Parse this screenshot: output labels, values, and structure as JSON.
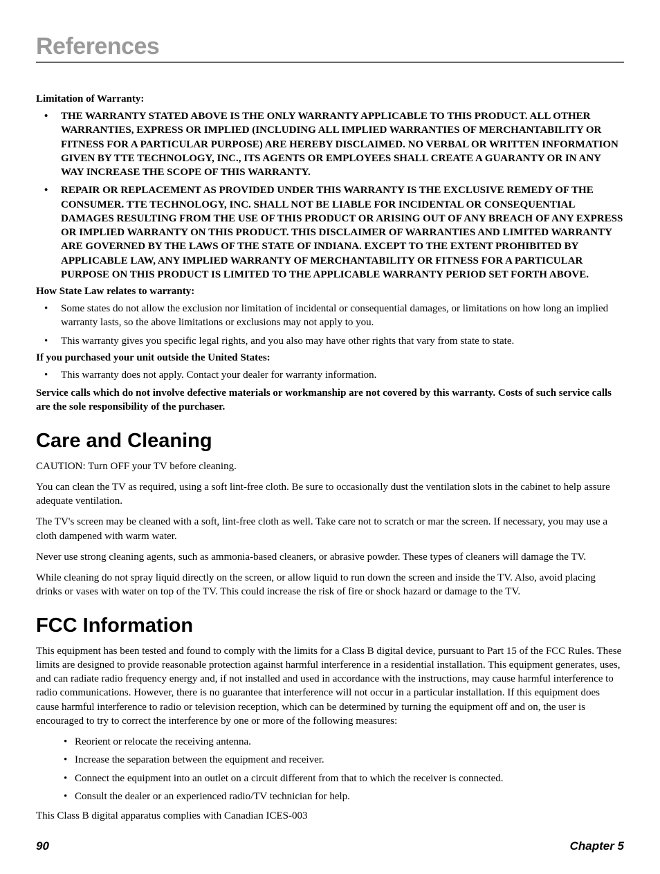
{
  "page_title": "References",
  "warranty": {
    "limitation_heading": "Limitation of Warranty:",
    "limitation_items": [
      "THE WARRANTY STATED ABOVE IS THE ONLY WARRANTY APPLICABLE TO THIS PRODUCT.  ALL OTHER WARRANTIES, EXPRESS OR IMPLIED (INCLUDING ALL IMPLIED WARRANTIES OF MERCHANTABILITY OR FITNESS FOR A PARTICULAR PURPOSE) ARE HEREBY DISCLAIMED.  NO VERBAL OR WRITTEN INFORMATION GIVEN BY TTE TECHNOLOGY, INC., ITS AGENTS OR EMPLOYEES SHALL CREATE A GUARANTY OR IN ANY WAY INCREASE THE SCOPE OF THIS WARRANTY.",
      "REPAIR OR REPLACEMENT AS PROVIDED UNDER THIS WARRANTY IS THE EXCLUSIVE REMEDY OF THE CONSUMER.  TTE TECHNOLOGY, INC. SHALL NOT BE LIABLE FOR INCIDENTAL OR CONSEQUENTIAL DAMAGES RESULTING FROM THE USE OF THIS PRODUCT OR ARISING OUT OF ANY BREACH OF ANY EXPRESS OR IMPLIED WARRANTY ON THIS PRODUCT.  THIS DISCLAIMER OF WARRANTIES AND LIMITED WARRANTY ARE GOVERNED BY THE LAWS OF THE STATE OF INDIANA.  EXCEPT TO THE EXTENT PROHIBITED BY APPLICABLE LAW, ANY IMPLIED WARRANTY OF MERCHANTABILITY OR FITNESS FOR A PARTICULAR PURPOSE ON THIS PRODUCT IS LIMITED TO THE APPLICABLE WARRANTY PERIOD SET FORTH ABOVE."
    ],
    "state_law_heading": "How State Law relates to warranty:",
    "state_law_items": [
      "Some states do not allow the exclusion nor limitation of incidental or consequential damages, or limitations on how long an implied warranty lasts, so the above limitations or exclusions may not apply to you.",
      "This warranty gives you specific legal rights, and you also may have other rights that vary from state to state."
    ],
    "outside_us_heading": "If you purchased your unit outside the United States:",
    "outside_us_items": [
      "This warranty does not apply.  Contact your dealer for warranty information."
    ],
    "service_calls": "Service calls which do not involve defective materials or workmanship are not covered by this warranty.  Costs of such service calls are the sole responsibility of the purchaser."
  },
  "care": {
    "heading": "Care and Cleaning",
    "p1": "CAUTION: Turn OFF your TV before cleaning.",
    "p2": "You can clean the TV as required, using a soft lint-free cloth. Be sure to occasionally dust the ventilation slots in the cabinet to help assure adequate ventilation.",
    "p3": "The TV's screen may be cleaned with a soft, lint-free cloth as well.  Take care not to scratch or mar the screen. If necessary, you may use a cloth dampened with warm water.",
    "p4": "Never use strong cleaning agents, such as ammonia-based cleaners, or abrasive powder. These types of cleaners will damage the TV.",
    "p5": "While cleaning do not spray liquid directly on the screen, or allow liquid to run down the screen and inside the TV. Also, avoid placing drinks or vases with water on top of the TV. This could increase the risk of fire or shock hazard or damage to the TV."
  },
  "fcc": {
    "heading": "FCC Information",
    "p1": "This equipment has been tested and found to comply with the limits for a Class B digital device, pursuant to Part 15 of the FCC Rules. These limits are designed to provide reasonable protection against harmful interference in a residential installation. This equipment generates, uses, and can radiate radio frequency energy and, if not installed and used in accordance with the instructions, may cause harmful interference to radio communications. However, there is no guarantee that interference will not occur in a particular installation. If this equipment does cause harmful interference to radio or television reception, which can be determined by turning the equipment off and on, the user is encouraged to try to correct the interference by one or more of the following measures:",
    "bullets": [
      "Reorient or relocate the receiving antenna.",
      "Increase the separation between the equipment and receiver.",
      "Connect the equipment into an outlet on a circuit different from that to which the receiver is connected.",
      "Consult the dealer or an experienced radio/TV technician for help."
    ],
    "p2": "This Class B digital apparatus complies with Canadian ICES-003"
  },
  "footer": {
    "page_number": "90",
    "chapter": "Chapter 5"
  }
}
